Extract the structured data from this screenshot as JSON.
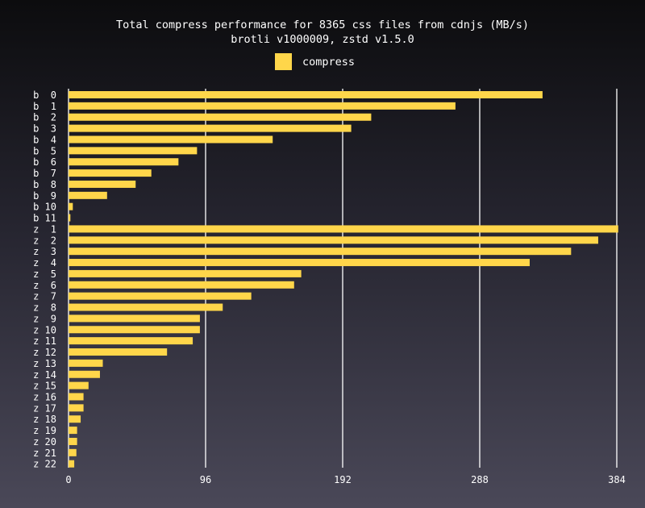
{
  "chart_data": {
    "type": "bar",
    "orientation": "horizontal",
    "title": "Total compress performance for 8365 css files from cdnjs (MB/s)",
    "subtitle": "brotli v1000009, zstd v1.5.0",
    "legend": [
      {
        "label": "compress",
        "color": "#ffd64a"
      }
    ],
    "legend_position": "top-center",
    "xlim": [
      0,
      384
    ],
    "xticks": [
      0,
      96,
      192,
      288,
      384
    ],
    "grid": true,
    "bar_color": "#ffd64a",
    "grid_color": "#ffffff",
    "categories": [
      "b  0",
      "b  1",
      "b  2",
      "b  3",
      "b  4",
      "b  5",
      "b  6",
      "b  7",
      "b  8",
      "b  9",
      "b 10",
      "b 11",
      "z  1",
      "z  2",
      "z  3",
      "z  4",
      "z  5",
      "z  6",
      "z  7",
      "z  8",
      "z  9",
      "z 10",
      "z 11",
      "z 12",
      "z 13",
      "z 14",
      "z 15",
      "z 16",
      "z 17",
      "z 18",
      "z 19",
      "z 20",
      "z 21",
      "z 22"
    ],
    "series": [
      {
        "name": "compress",
        "values": [
          332,
          271,
          212,
          198,
          143,
          90,
          77,
          58,
          47,
          27,
          3,
          1.3,
          385,
          371,
          352,
          323,
          163,
          158,
          128,
          108,
          92,
          92,
          87,
          69,
          24,
          22,
          14,
          10.5,
          10.5,
          8.5,
          6,
          6,
          5.5,
          4
        ]
      }
    ]
  }
}
